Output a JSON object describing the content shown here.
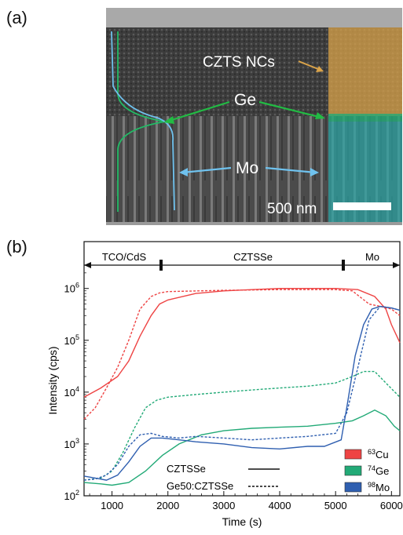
{
  "panel_a": {
    "label": "(a)",
    "annotations": {
      "czts": "CZTS NCs",
      "ge": "Ge",
      "mo": "Mo",
      "scale": "500 nm"
    }
  },
  "panel_b": {
    "label": "(b)",
    "regions": [
      "TCO/CdS",
      "CZTSSe",
      "Mo"
    ],
    "legend_isotopes": [
      {
        "sup": "63",
        "el": "Cu",
        "color": "#ee4444"
      },
      {
        "sup": "74",
        "el": "Ge",
        "color": "#22aa77"
      },
      {
        "sup": "98",
        "el": "Mo",
        "color": "#2f5fb0"
      }
    ],
    "legend_styles": [
      {
        "label": "CZTSSe",
        "dash": "solid"
      },
      {
        "label": "Ge50:CZTSSe",
        "dash": "dashed"
      }
    ]
  },
  "chart_data": {
    "type": "line",
    "xlabel": "Time (s)",
    "ylabel": "Intensity (cps)",
    "xlim": [
      500,
      6150
    ],
    "ylim_log10": [
      2,
      6.45
    ],
    "yscale": "log",
    "xticks": [
      1000,
      2000,
      3000,
      4000,
      5000,
      6000
    ],
    "ytick_labels": [
      {
        "exp": 2,
        "base": "10",
        "sup": "2"
      },
      {
        "exp": 3,
        "base": "10",
        "sup": "3"
      },
      {
        "exp": 4,
        "base": "10",
        "sup": "4"
      },
      {
        "exp": 5,
        "base": "10",
        "sup": "5"
      },
      {
        "exp": 6,
        "base": "10",
        "sup": "6"
      }
    ],
    "series": [
      {
        "name": "63Cu CZTSSe",
        "color": "#ee4444",
        "dash": "solid",
        "points": [
          [
            500,
            8000
          ],
          [
            800,
            12000
          ],
          [
            1100,
            20000
          ],
          [
            1300,
            40000
          ],
          [
            1500,
            120000
          ],
          [
            1700,
            300000
          ],
          [
            1850,
            500000
          ],
          [
            2000,
            600000
          ],
          [
            2500,
            800000
          ],
          [
            3000,
            900000
          ],
          [
            3500,
            950000
          ],
          [
            4000,
            1000000
          ],
          [
            4500,
            1000000
          ],
          [
            5000,
            1000000
          ],
          [
            5400,
            950000
          ],
          [
            5700,
            700000
          ],
          [
            5900,
            400000
          ],
          [
            6000,
            200000
          ],
          [
            6150,
            90000
          ]
        ]
      },
      {
        "name": "63Cu Ge50:CZTSSe",
        "color": "#ee4444",
        "dash": "dashed",
        "points": [
          [
            500,
            3000
          ],
          [
            700,
            5000
          ],
          [
            900,
            12000
          ],
          [
            1100,
            30000
          ],
          [
            1300,
            100000
          ],
          [
            1500,
            400000
          ],
          [
            1700,
            700000
          ],
          [
            1850,
            820000
          ],
          [
            2000,
            870000
          ],
          [
            3000,
            920000
          ],
          [
            4000,
            950000
          ],
          [
            5000,
            950000
          ],
          [
            5300,
            900000
          ],
          [
            5600,
            500000
          ],
          [
            5800,
            450000
          ],
          [
            6000,
            400000
          ],
          [
            6150,
            300000
          ]
        ]
      },
      {
        "name": "74Ge CZTSSe",
        "color": "#22aa77",
        "dash": "solid",
        "points": [
          [
            500,
            180
          ],
          [
            800,
            170
          ],
          [
            1000,
            160
          ],
          [
            1300,
            180
          ],
          [
            1600,
            300
          ],
          [
            1900,
            600
          ],
          [
            2200,
            1000
          ],
          [
            2600,
            1500
          ],
          [
            3000,
            1800
          ],
          [
            3500,
            2000
          ],
          [
            4000,
            2100
          ],
          [
            4500,
            2200
          ],
          [
            5000,
            2500
          ],
          [
            5300,
            2800
          ],
          [
            5500,
            3500
          ],
          [
            5700,
            4500
          ],
          [
            5900,
            3500
          ],
          [
            6050,
            2200
          ],
          [
            6150,
            1800
          ]
        ]
      },
      {
        "name": "74Ge Ge50:CZTSSe",
        "color": "#22aa77",
        "dash": "dashed",
        "points": [
          [
            500,
            200
          ],
          [
            800,
            220
          ],
          [
            1000,
            300
          ],
          [
            1200,
            700
          ],
          [
            1400,
            2000
          ],
          [
            1600,
            5000
          ],
          [
            1800,
            7000
          ],
          [
            2000,
            8000
          ],
          [
            2500,
            9000
          ],
          [
            3000,
            10000
          ],
          [
            3500,
            11000
          ],
          [
            4000,
            12000
          ],
          [
            4500,
            13000
          ],
          [
            5000,
            15000
          ],
          [
            5300,
            20000
          ],
          [
            5500,
            25000
          ],
          [
            5700,
            25000
          ],
          [
            5900,
            15000
          ],
          [
            6150,
            8000
          ]
        ]
      },
      {
        "name": "98Mo CZTSSe",
        "color": "#2f5fb0",
        "dash": "solid",
        "points": [
          [
            500,
            240
          ],
          [
            700,
            220
          ],
          [
            900,
            200
          ],
          [
            1100,
            250
          ],
          [
            1300,
            450
          ],
          [
            1500,
            900
          ],
          [
            1700,
            1300
          ],
          [
            1900,
            1300
          ],
          [
            2200,
            1200
          ],
          [
            2500,
            1100
          ],
          [
            3000,
            1000
          ],
          [
            3500,
            850
          ],
          [
            4000,
            800
          ],
          [
            4500,
            900
          ],
          [
            4800,
            900
          ],
          [
            5100,
            1200
          ],
          [
            5200,
            5000
          ],
          [
            5350,
            50000
          ],
          [
            5500,
            200000
          ],
          [
            5650,
            400000
          ],
          [
            5800,
            450000
          ],
          [
            6000,
            420000
          ],
          [
            6150,
            380000
          ]
        ]
      },
      {
        "name": "98Mo Ge50:CZTSSe",
        "color": "#2f5fb0",
        "dash": "dashed",
        "points": [
          [
            500,
            200
          ],
          [
            700,
            210
          ],
          [
            900,
            250
          ],
          [
            1100,
            400
          ],
          [
            1300,
            900
          ],
          [
            1500,
            1500
          ],
          [
            1700,
            1600
          ],
          [
            1900,
            1400
          ],
          [
            2200,
            1300
          ],
          [
            2500,
            1400
          ],
          [
            3000,
            1300
          ],
          [
            3500,
            1200
          ],
          [
            4000,
            1300
          ],
          [
            4500,
            1400
          ],
          [
            5000,
            1600
          ],
          [
            5200,
            4000
          ],
          [
            5400,
            30000
          ],
          [
            5600,
            250000
          ],
          [
            5800,
            450000
          ],
          [
            6000,
            420000
          ],
          [
            6150,
            380000
          ]
        ]
      }
    ]
  }
}
